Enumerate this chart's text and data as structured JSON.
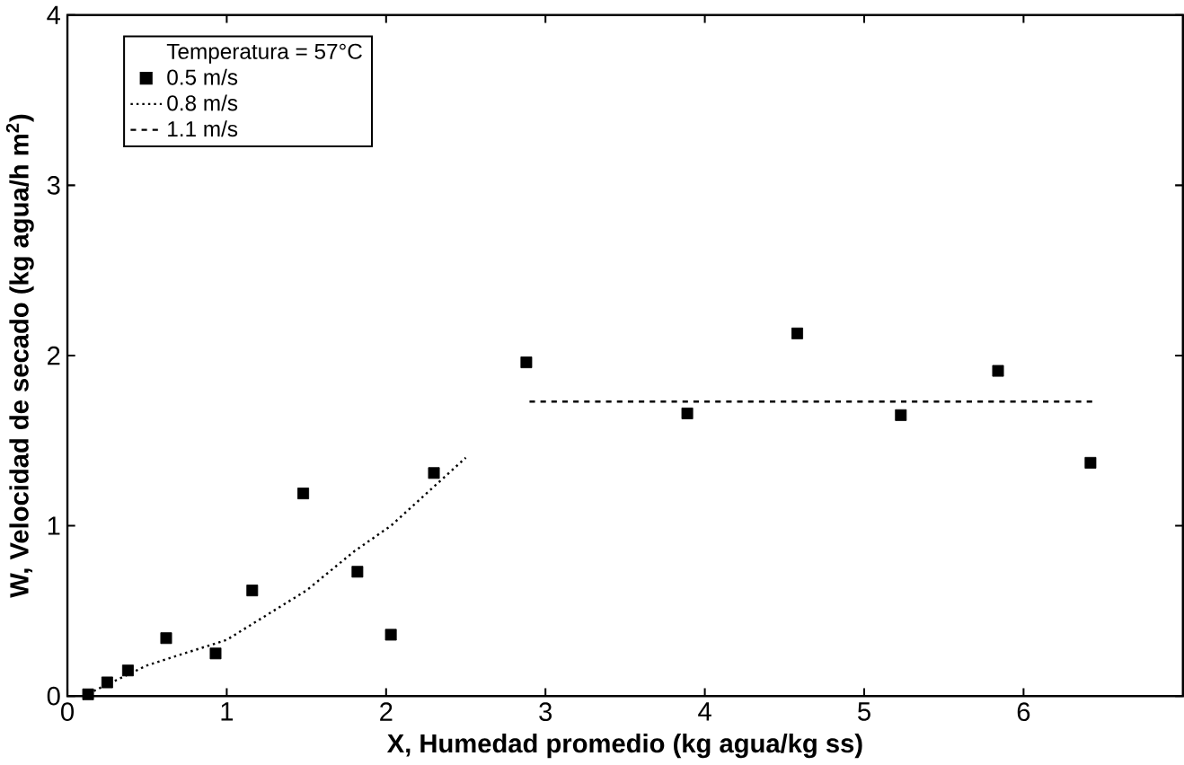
{
  "chart_data": {
    "type": "scatter",
    "xlabel": "X, Humedad promedio (kg agua/kg ss)",
    "ylabel": "W, Velocidad de secado (kg agua/h m$^{2}$)",
    "legend_title": "Temperatura = 57°C",
    "legend": "top left",
    "xlim": [
      0,
      7
    ],
    "ylim": [
      0,
      4
    ],
    "xticks": [
      0,
      1,
      2,
      3,
      4,
      5,
      6
    ],
    "yticks": [
      0,
      1,
      2,
      3,
      4
    ],
    "grid": false,
    "series": [
      {
        "name": "0.5 m/s",
        "marker": "square",
        "color": "#000000",
        "x": [
          0.13,
          0.25,
          0.38,
          0.62,
          0.93,
          1.16,
          1.48,
          1.82,
          2.03,
          2.3,
          2.88,
          3.89,
          4.58,
          5.23,
          5.84,
          6.42
        ],
        "values": [
          0.01,
          0.08,
          0.15,
          0.34,
          0.25,
          0.62,
          1.19,
          0.73,
          0.36,
          1.31,
          1.96,
          1.66,
          2.13,
          1.65,
          1.91,
          1.37
        ]
      },
      {
        "name": "0.8 m/s",
        "type": "line",
        "marker": "none",
        "line_style": "dotted",
        "color": "#000000",
        "x": [
          0.1,
          0.5,
          1.0,
          1.5,
          1.8,
          2.03,
          2.5
        ],
        "values": [
          0.0,
          0.18,
          0.33,
          0.62,
          0.85,
          1.0,
          1.4
        ]
      },
      {
        "name": "1.1 m/s",
        "type": "line",
        "marker": "none",
        "line_style": "dashed",
        "color": "#000000",
        "x": [
          2.9,
          6.45
        ],
        "values": [
          1.73,
          1.73
        ]
      }
    ]
  }
}
